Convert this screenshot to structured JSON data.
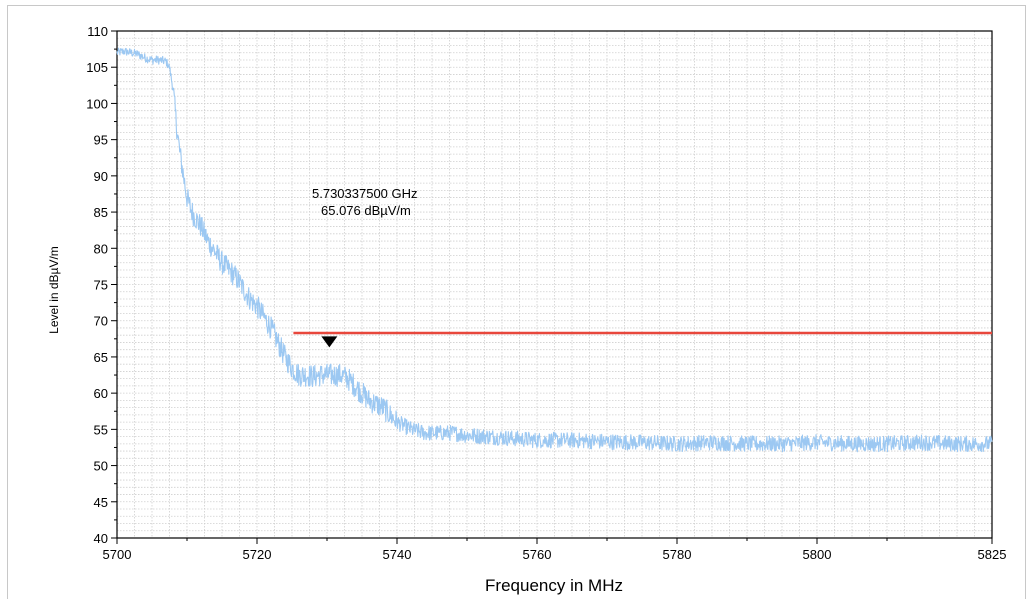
{
  "chart_data": {
    "type": "line",
    "xlabel": "Frequency in MHz",
    "ylabel": "Level in dBµV/m",
    "xlim": [
      5700,
      5825
    ],
    "ylim": [
      40,
      110
    ],
    "x_ticks": [
      "5700",
      "5720",
      "5740",
      "5760",
      "5780",
      "5800",
      "5825"
    ],
    "x_tick_values": [
      5700,
      5720,
      5740,
      5760,
      5780,
      5800,
      5825
    ],
    "y_ticks": [
      "40",
      "45",
      "50",
      "55",
      "60",
      "65",
      "70",
      "75",
      "80",
      "85",
      "90",
      "95",
      "100",
      "105",
      "110"
    ],
    "y_tick_values": [
      40,
      45,
      50,
      55,
      60,
      65,
      70,
      75,
      80,
      85,
      90,
      95,
      100,
      105,
      110
    ],
    "grid": true,
    "series": [
      {
        "color": "#9cc8f2",
        "x": [
          5700,
          5701,
          5702,
          5703,
          5704,
          5705,
          5706,
          5707,
          5707.5,
          5708,
          5708.5,
          5709,
          5709.5,
          5710,
          5710.5,
          5711,
          5712,
          5713,
          5714,
          5715,
          5716,
          5717,
          5718,
          5719,
          5720,
          5721,
          5722,
          5723,
          5724,
          5725,
          5726,
          5727,
          5728,
          5729,
          5730,
          5731,
          5732,
          5733,
          5734,
          5735,
          5736,
          5737,
          5738,
          5739,
          5740,
          5742,
          5744,
          5746,
          5748,
          5750,
          5753,
          5756,
          5760,
          5765,
          5770,
          5775,
          5780,
          5785,
          5790,
          5795,
          5800,
          5805,
          5810,
          5815,
          5820,
          5825
        ],
        "values": [
          107,
          107.2,
          107,
          106.8,
          106.3,
          106,
          106,
          105.8,
          105,
          102,
          97,
          93,
          90,
          87,
          85.5,
          84.5,
          83,
          81,
          79.5,
          78,
          77,
          76,
          74.5,
          73,
          72,
          70.5,
          69,
          67,
          65,
          63.5,
          62.5,
          62.5,
          62.3,
          62.5,
          62.5,
          62.5,
          62.5,
          62,
          61,
          60,
          59,
          58.5,
          58,
          57,
          56,
          55,
          54.5,
          54.5,
          54.5,
          54.2,
          54,
          53.8,
          53.5,
          53.5,
          53.3,
          53.2,
          53,
          53.2,
          53,
          53,
          53.2,
          53,
          53,
          53.2,
          53,
          53
        ]
      }
    ],
    "limit_line": {
      "y": 68.3,
      "x_start": 5725.2,
      "x_end": 5825,
      "color": "#e8473c"
    },
    "marker": {
      "x": 5730.3375,
      "y": 65.076,
      "frequency": "5.730337500 GHz",
      "level": "65.076 dBµV/m"
    }
  }
}
